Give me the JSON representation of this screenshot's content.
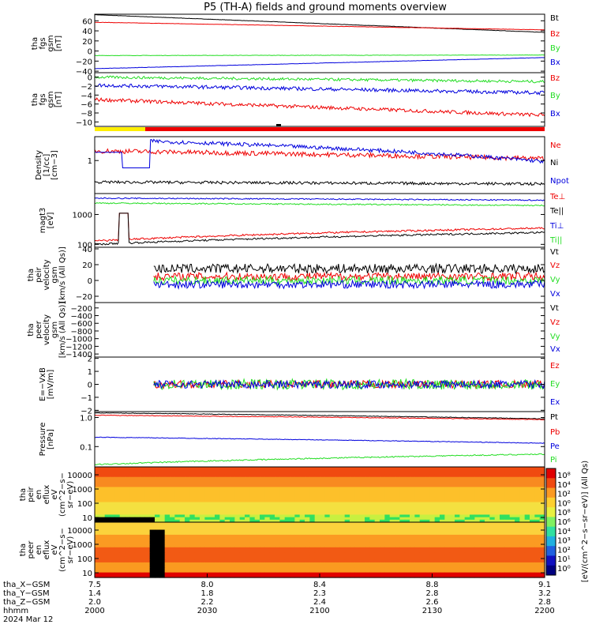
{
  "title": "P5 (TH-A) fields and ground moments overview",
  "colors": {
    "black": "#000000",
    "red": "#ee0000",
    "green": "#22dd22",
    "blue": "#0000dd",
    "yellow": "#ffee00"
  },
  "chart_data": [
    {
      "type": "line",
      "panel": "fgs_gsm",
      "ylabel": [
        "tha",
        "fgs",
        "gsm",
        "[nT]"
      ],
      "yticks": [
        "60",
        "40",
        "20",
        "0",
        "−20",
        "−40"
      ],
      "ylim": [
        -43,
        73
      ],
      "series": [
        {
          "name": "Bt",
          "color": "black",
          "start": 72,
          "end": 37,
          "noise": 0.3
        },
        {
          "name": "Bz",
          "color": "red",
          "start": 57,
          "end": 42,
          "noise": 0.3
        },
        {
          "name": "By",
          "color": "green",
          "start": -9,
          "end": -8,
          "noise": 0.4
        },
        {
          "name": "Bx",
          "color": "blue",
          "start": -35,
          "end": -13,
          "noise": 0.3
        }
      ]
    },
    {
      "type": "line",
      "panel": "fgs_dsl",
      "ylabel": [
        "tha",
        "fgs",
        "gsm",
        "[nT]"
      ],
      "yticks": [
        "0",
        "−2",
        "−4",
        "−6",
        "−8",
        "−10"
      ],
      "ylim": [
        -11,
        1
      ],
      "series": [
        {
          "name": "Bz",
          "color": "red",
          "start": -5,
          "end": -8.5,
          "noise": 0.4
        },
        {
          "name": "By",
          "color": "green",
          "start": 0,
          "end": -1,
          "noise": 0.3
        },
        {
          "name": "Bx",
          "color": "blue",
          "start": -1.8,
          "end": -3.5,
          "noise": 0.4
        }
      ]
    },
    {
      "type": "line",
      "panel": "density",
      "scale": "log",
      "ylabel": [
        "Density",
        "[1/cc]",
        "[cm−3]"
      ],
      "yticks": [
        "1"
      ],
      "ylim": [
        0.2,
        3.2
      ],
      "series": [
        {
          "name": "Ne",
          "color": "red",
          "start": 1.6,
          "end": 1.1,
          "noise": 0.05
        },
        {
          "name": "Ni",
          "color": "black",
          "start": 0.35,
          "end": 0.32,
          "noise": 0.03
        },
        {
          "name": "Npot",
          "color": "blue",
          "start": 2.8,
          "end": 0.95,
          "noise": 0.04
        }
      ]
    },
    {
      "type": "line",
      "panel": "temperature",
      "scale": "log",
      "ylabel": [
        "magt3",
        "[eV]"
      ],
      "yticks": [
        "1000",
        "100"
      ],
      "ylim": [
        80,
        5000
      ],
      "series": [
        {
          "name": "Te⊥",
          "color": "red",
          "start": 130,
          "end": 350,
          "noise": 0.03
        },
        {
          "name": "Te||",
          "color": "black",
          "start": 100,
          "end": 250,
          "noise": 0.03
        },
        {
          "name": "Ti⊥",
          "color": "blue",
          "start": 3500,
          "end": 3000,
          "noise": 0.02
        },
        {
          "name": "Ti||",
          "color": "green",
          "start": 2400,
          "end": 2000,
          "noise": 0.02
        }
      ]
    },
    {
      "type": "line",
      "panel": "peir_velocity",
      "ylabel": [
        "tha",
        "peir",
        "velocity",
        "gsm",
        "[km/s (All Qs)]"
      ],
      "yticks": [
        "40",
        "20",
        "0",
        "−20"
      ],
      "ylim": [
        -28,
        42
      ],
      "series": [
        {
          "name": "Vt",
          "color": "black",
          "start": 15,
          "end": 15,
          "noise": 6
        },
        {
          "name": "Vz",
          "color": "red",
          "start": 5,
          "end": 5,
          "noise": 5
        },
        {
          "name": "Vy",
          "color": "green",
          "start": 0,
          "end": 0,
          "noise": 5
        },
        {
          "name": "Vx",
          "color": "blue",
          "start": -5,
          "end": -5,
          "noise": 5
        }
      ]
    },
    {
      "type": "line",
      "panel": "peer_velocity",
      "ylabel": [
        "tha",
        "peer",
        "velocity",
        "gsm",
        "[km/s (All Qs)]"
      ],
      "yticks": [
        "−200",
        "−400",
        "−600",
        "−800",
        "−1000",
        "−1200",
        "−1400"
      ],
      "ylim": [
        -1480,
        -60
      ],
      "series": [
        {
          "name": "Vt",
          "color": "black"
        },
        {
          "name": "Vz",
          "color": "red"
        },
        {
          "name": "Vy",
          "color": "green"
        },
        {
          "name": "Vx",
          "color": "blue"
        }
      ]
    },
    {
      "type": "line",
      "panel": "efield",
      "ylabel": [
        "E=−VxB",
        "[mV/m]"
      ],
      "yticks": [
        "2",
        "1",
        "0",
        "−1",
        "−2"
      ],
      "ylim": [
        -2.1,
        2.1
      ],
      "series": [
        {
          "name": "Ez",
          "color": "red",
          "start": 0,
          "end": 0,
          "noise": 0.3
        },
        {
          "name": "Ey",
          "color": "green",
          "start": 0,
          "end": 0,
          "noise": 0.4
        },
        {
          "name": "Ex",
          "color": "blue",
          "start": 0,
          "end": 0,
          "noise": 0.3
        }
      ]
    },
    {
      "type": "line",
      "panel": "pressure",
      "scale": "log",
      "ylabel": [
        "Pressure",
        "[nPa]"
      ],
      "yticks": [
        "1.0",
        "0.1"
      ],
      "ylim": [
        0.02,
        1.6
      ],
      "series": [
        {
          "name": "Pt",
          "color": "black",
          "start": 1.45,
          "end": 0.9,
          "noise": 0.01
        },
        {
          "name": "Pb",
          "color": "red",
          "start": 1.2,
          "end": 0.85,
          "noise": 0.01
        },
        {
          "name": "Pe",
          "color": "blue",
          "start": 0.21,
          "end": 0.13,
          "noise": 0.01
        },
        {
          "name": "Pi",
          "color": "green",
          "start": 0.024,
          "end": 0.055,
          "noise": 0.02
        }
      ]
    },
    {
      "type": "heatmap",
      "panel": "peir_spectrogram",
      "ylabel": [
        "tha",
        "peir",
        "en",
        "eflux",
        "eV",
        "(cm^2−s−",
        "sr−eV)"
      ],
      "yticks": [
        "10000",
        "1000",
        "100",
        "10"
      ]
    },
    {
      "type": "heatmap",
      "panel": "peer_spectrogram",
      "ylabel": [
        "tha",
        "peer",
        "en",
        "eflux",
        "eV",
        "(cm^2−s−",
        "sr−eV)"
      ],
      "yticks": [
        "10000",
        "1000",
        "100",
        "10"
      ]
    }
  ],
  "colorbar": {
    "ticks": [
      "10⁸",
      "10⁴",
      "10²",
      "10⁰",
      "10⁸",
      "10⁶",
      "10⁴",
      "10³",
      "10²",
      "10¹",
      "10⁰"
    ],
    "label": "[eV/(cm^2−s−sr−eV)] (All Qs)"
  },
  "mode_bar": {
    "label": ""
  },
  "xaxis": {
    "rows": [
      {
        "label": "tha_X−GSM",
        "values": [
          "7.5",
          "8.0",
          "8.4",
          "8.8",
          "9.1"
        ]
      },
      {
        "label": "tha_Y−GSM",
        "values": [
          "1.4",
          "1.8",
          "2.3",
          "2.8",
          "3.2"
        ]
      },
      {
        "label": "tha_Z−GSM",
        "values": [
          "2.0",
          "2.2",
          "2.4",
          "2.6",
          "2.8"
        ]
      },
      {
        "label": "hhmm",
        "values": [
          "2000",
          "2030",
          "2100",
          "2130",
          "2200"
        ]
      }
    ],
    "date": "2024 Mar 12"
  }
}
